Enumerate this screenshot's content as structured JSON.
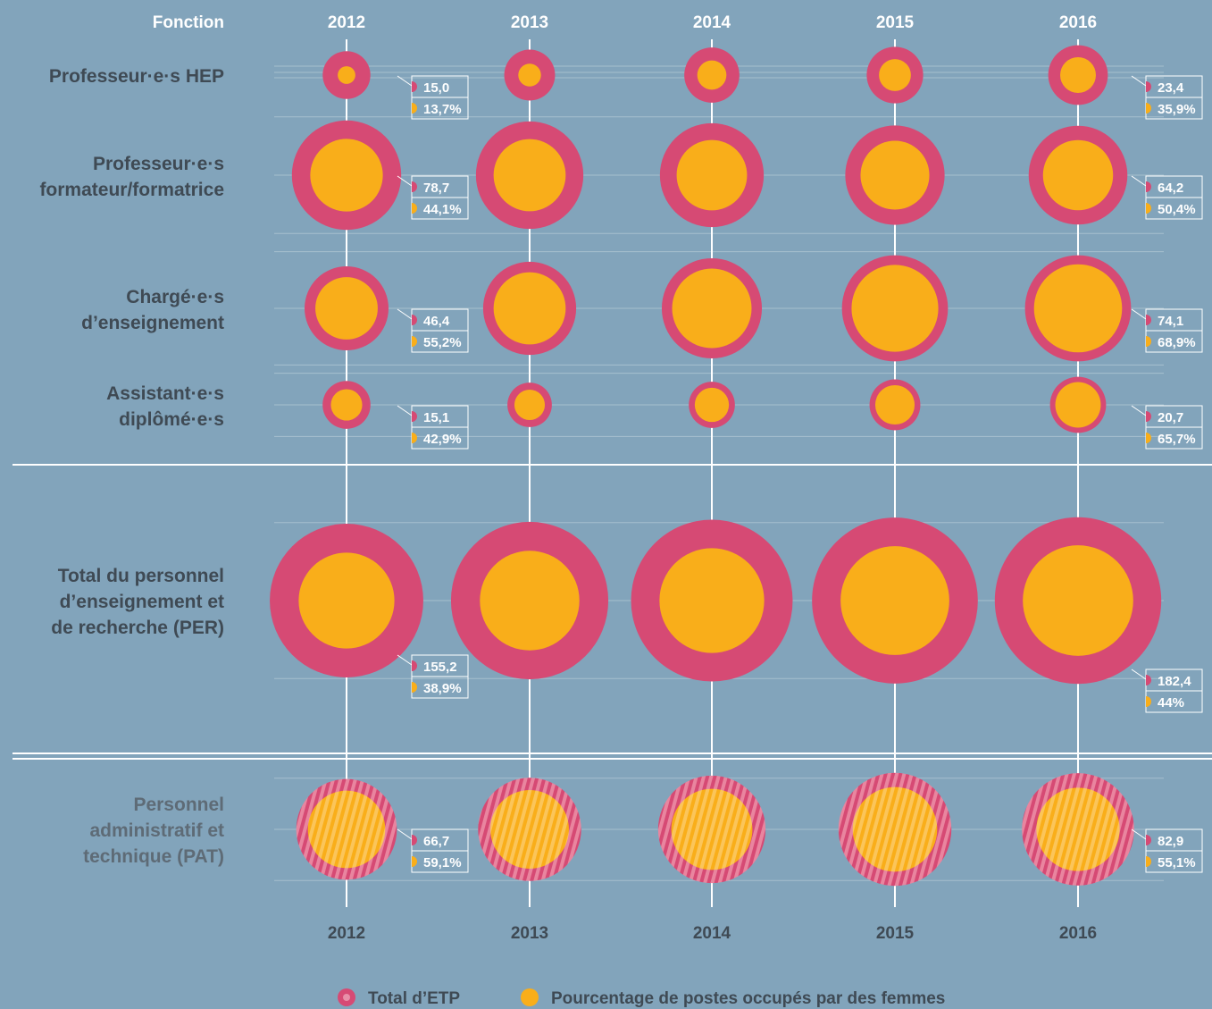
{
  "header": {
    "fonction_label": "Fonction"
  },
  "years": [
    "2012",
    "2013",
    "2014",
    "2015",
    "2016"
  ],
  "colors": {
    "total": "#d64a74",
    "women": "#f9ae1a",
    "background": "#82a4bb",
    "text": "#3f4a54"
  },
  "legend": {
    "total_label": "Total d’ETP",
    "women_label": "Pourcentage de postes occupés par des femmes"
  },
  "chart_data": {
    "type": "bubble",
    "categories": [
      "2012",
      "2013",
      "2014",
      "2015",
      "2016"
    ],
    "rows": [
      {
        "label_lines": [
          "Professeur·e·s HEP"
        ],
        "total_etp": [
          15.0,
          17.0,
          20.0,
          21.0,
          23.4
        ],
        "women_pct": [
          13.7,
          20,
          28,
          32,
          35.9
        ],
        "callouts": {
          "first": {
            "total": "15,0",
            "pct": "13,7%"
          },
          "last": {
            "total": "23,4",
            "pct": "35,9%"
          }
        },
        "hatched": false
      },
      {
        "label_lines": [
          "Professeur·e·s",
          "formateur/formatrice"
        ],
        "total_etp": [
          78.7,
          76.0,
          71.0,
          65.0,
          64.2
        ],
        "women_pct": [
          44.1,
          45,
          46,
          48,
          50.4
        ],
        "callouts": {
          "first": {
            "total": "78,7",
            "pct": "44,1%"
          },
          "last": {
            "total": "64,2",
            "pct": "50,4%"
          }
        },
        "hatched": false
      },
      {
        "label_lines": [
          "Chargé·e·s",
          "d’enseignement"
        ],
        "total_etp": [
          46.4,
          57.0,
          66.0,
          74.0,
          74.1
        ],
        "women_pct": [
          55.2,
          60,
          63,
          67,
          68.9
        ],
        "callouts": {
          "first": {
            "total": "46,4",
            "pct": "55,2%"
          },
          "last": {
            "total": "74,1",
            "pct": "68,9%"
          }
        },
        "hatched": false
      },
      {
        "label_lines": [
          "Assistant·e·s",
          "diplômé·e·s"
        ],
        "total_etp": [
          15.1,
          13.0,
          14.0,
          17.0,
          20.7
        ],
        "women_pct": [
          42.9,
          47,
          55,
          60,
          65.7
        ],
        "callouts": {
          "first": {
            "total": "15,1",
            "pct": "42,9%"
          },
          "last": {
            "total": "20,7",
            "pct": "65,7%"
          }
        },
        "hatched": false
      },
      {
        "label_lines": [
          "Total du personnel",
          "d’enseignement et",
          "de recherche (PER)"
        ],
        "total_etp": [
          155.2,
          163.0,
          172.0,
          181.0,
          182.4
        ],
        "women_pct": [
          38.9,
          40,
          42,
          43,
          44
        ],
        "callouts": {
          "first": {
            "total": "155,2",
            "pct": "38,9%"
          },
          "last": {
            "total": "182,4",
            "pct": "44%"
          }
        },
        "hatched": false
      },
      {
        "label_lines": [
          "Personnel",
          "administratif et",
          "technique (PAT)"
        ],
        "total_etp": [
          66.7,
          70.0,
          76.0,
          84.0,
          82.9
        ],
        "women_pct": [
          59.1,
          58,
          57,
          56,
          55.1
        ],
        "callouts": {
          "first": {
            "total": "66,7",
            "pct": "59,1%"
          },
          "last": {
            "total": "82,9",
            "pct": "55,1%"
          }
        },
        "hatched": true
      }
    ]
  }
}
